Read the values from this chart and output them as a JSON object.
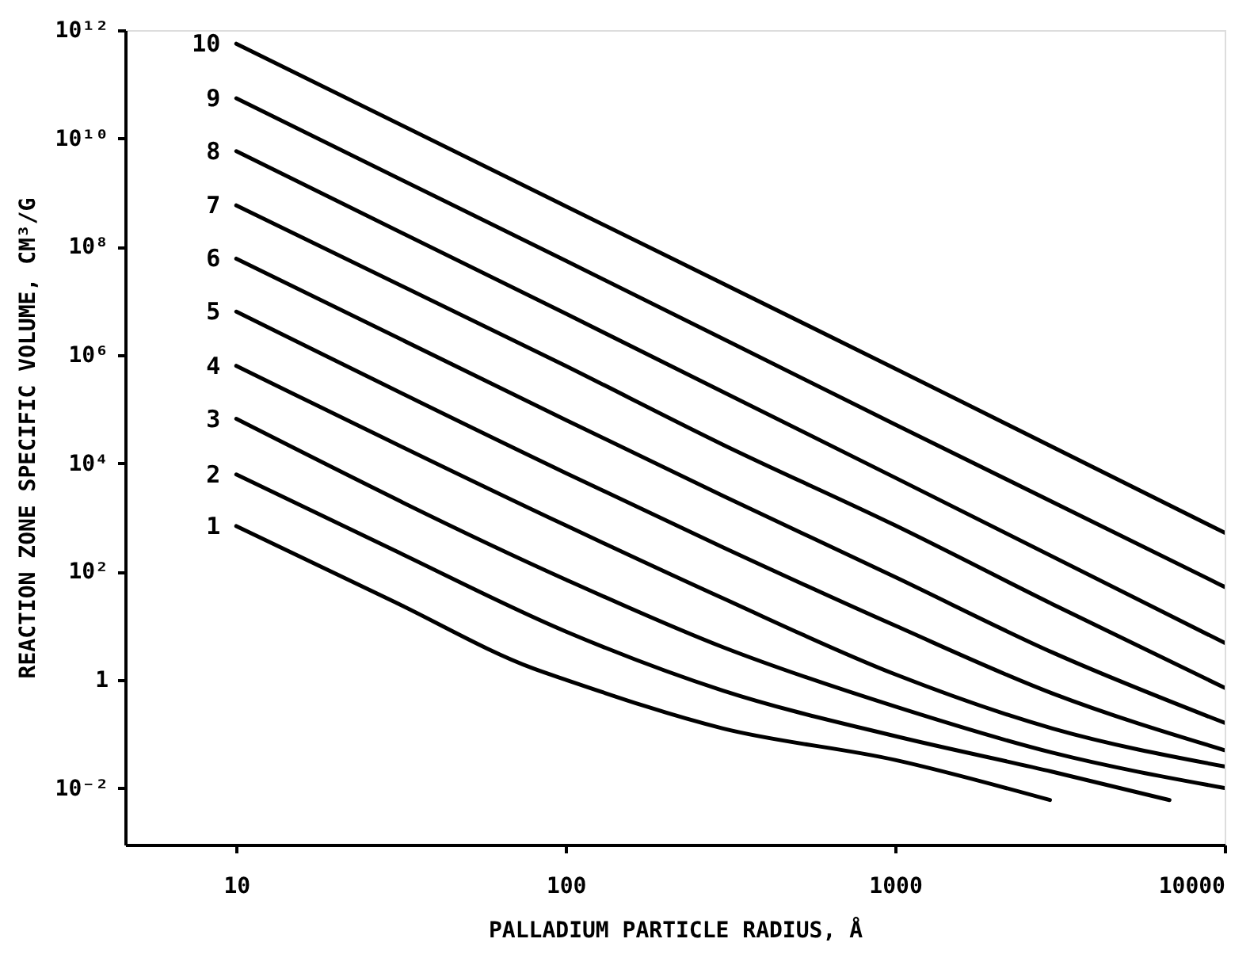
{
  "chart_data": {
    "type": "line",
    "xlabel": "PALLADIUM PARTICLE RADIUS, Å",
    "ylabel": "REACTION ZONE SPECIFIC VOLUME, CM³/G",
    "log": "xy",
    "grid": false,
    "legend": false,
    "marker": "none",
    "line_style": "solid",
    "xlim": [
      4.6,
      10000
    ],
    "ylim": [
      0.0009,
      1000000000000.0
    ],
    "xticks": [
      10,
      100,
      1000,
      10000
    ],
    "yticks": [
      {
        "value": 0.01,
        "label": "10⁻²"
      },
      1,
      {
        "value": 100,
        "label": "10²"
      },
      {
        "value": 10000,
        "label": "10⁴"
      },
      {
        "value": 1000000,
        "label": "10⁶"
      },
      {
        "value": 100000000,
        "label": "10⁸"
      },
      {
        "value": 10000000000,
        "label": "10¹⁰"
      },
      {
        "value": 1000000000000,
        "label": "10¹²"
      }
    ],
    "series": [
      {
        "name": "1",
        "color": "#000000",
        "x": [
          10,
          30,
          80,
          100,
          300,
          1000,
          2950
        ],
        "values": [
          690,
          28,
          1.6,
          1.0,
          0.126,
          0.033,
          0.006
        ]
      },
      {
        "name": "2",
        "color": "#000000",
        "x": [
          10,
          30,
          100,
          300,
          1000,
          3000,
          6800
        ],
        "values": [
          6200,
          250,
          7.8,
          0.63,
          0.091,
          0.02,
          0.006
        ]
      },
      {
        "name": "3",
        "color": "#000000",
        "x": [
          10,
          100,
          300,
          1000,
          3000,
          10000
        ],
        "values": [
          66000,
          71,
          4.0,
          0.32,
          0.045,
          0.01
        ]
      },
      {
        "name": "4",
        "color": "#000000",
        "x": [
          10,
          100,
          300,
          1000,
          3000,
          10000
        ],
        "values": [
          630000,
          710,
          32,
          1.26,
          0.126,
          0.025
        ]
      },
      {
        "name": "5",
        "color": "#000000",
        "x": [
          10,
          100,
          300,
          1000,
          3000,
          10000
        ],
        "values": [
          6300000,
          6600,
          280,
          10,
          0.56,
          0.05
        ]
      },
      {
        "name": "6",
        "color": "#000000",
        "x": [
          10,
          100,
          300,
          1000,
          3000,
          10000
        ],
        "values": [
          60000000,
          63000,
          2500,
          79,
          3.2,
          0.16
        ]
      },
      {
        "name": "7",
        "color": "#000000",
        "x": [
          10,
          100,
          300,
          1000,
          3000,
          10000
        ],
        "values": [
          580000000,
          630000,
          22000,
          710,
          25,
          0.71
        ]
      },
      {
        "name": "8",
        "color": "#000000",
        "x": [
          10,
          100,
          1000,
          10000
        ],
        "values": [
          5800000000,
          5800000,
          5400,
          4.8
        ]
      },
      {
        "name": "9",
        "color": "#000000",
        "x": [
          10,
          100,
          1000,
          10000
        ],
        "values": [
          55000000000,
          55000000,
          52000,
          52
        ]
      },
      {
        "name": "10",
        "color": "#000000",
        "x": [
          10,
          100,
          1000,
          10000
        ],
        "values": [
          560000000000,
          560000000,
          560000,
          520
        ]
      }
    ]
  }
}
